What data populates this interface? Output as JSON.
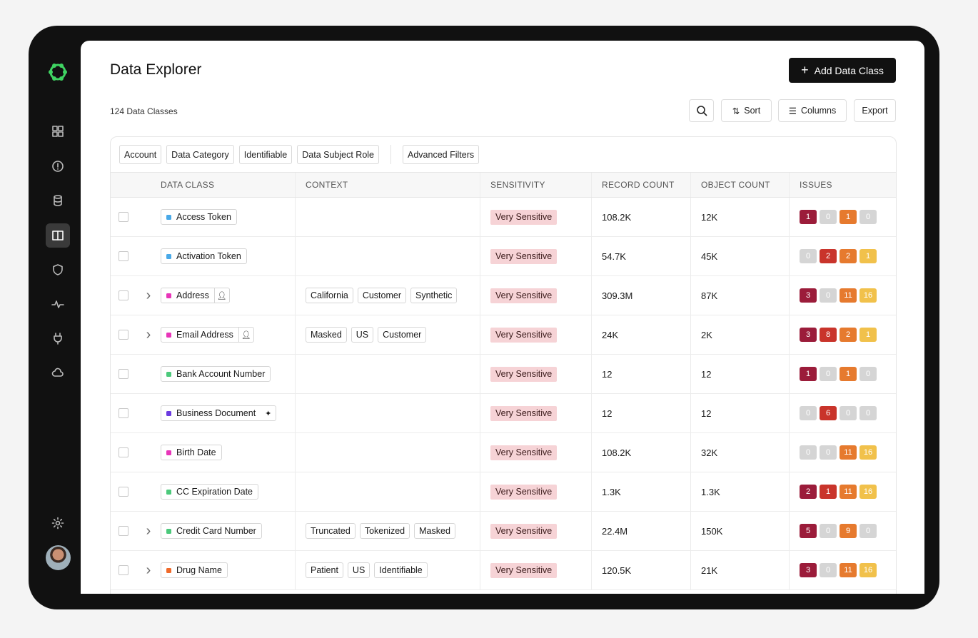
{
  "sidebar": {
    "items": [
      {
        "name": "dashboard-icon"
      },
      {
        "name": "alert-icon"
      },
      {
        "name": "database-icon"
      },
      {
        "name": "data-explorer-icon",
        "active": true
      },
      {
        "name": "shield-icon"
      },
      {
        "name": "activity-icon"
      },
      {
        "name": "plug-icon"
      },
      {
        "name": "cloud-icon"
      }
    ],
    "settings": "gear-icon",
    "avatar": "user-avatar",
    "logo_color": "#3fd462"
  },
  "header": {
    "title": "Data Explorer",
    "add_button": "Add Data Class",
    "count": "124 Data Classes"
  },
  "toolbar": {
    "sort": "Sort",
    "columns": "Columns",
    "export": "Export"
  },
  "filters": [
    "Account",
    "Data Category",
    "Identifiable",
    "Data Subject Role"
  ],
  "advanced_filters": "Advanced Filters",
  "columns": [
    "DATA CLASS",
    "CONTEXT",
    "SENSITIVITY",
    "RECORD COUNT",
    "OBJECT COUNT",
    "ISSUES"
  ],
  "issue_colors": [
    "#9b1c3a",
    "#c9342b",
    "#e67a2e",
    "#f1c14b"
  ],
  "issue_zero_color": "#d5d5d5",
  "rows": [
    {
      "name": "Access Token",
      "dot": "#49a9e8",
      "expandable": false,
      "icon": null,
      "context": [],
      "sensitivity": "Very Sensitive",
      "records": "108.2K",
      "objects": "12K",
      "issues": [
        1,
        0,
        1,
        0
      ]
    },
    {
      "name": "Activation Token",
      "dot": "#49a9e8",
      "expandable": false,
      "icon": null,
      "context": [],
      "sensitivity": "Very Sensitive",
      "records": "54.7K",
      "objects": "45K",
      "issues": [
        0,
        2,
        2,
        1
      ]
    },
    {
      "name": "Address",
      "dot": "#e835b9",
      "expandable": true,
      "icon": "person-icon",
      "context": [
        "California",
        "Customer",
        "Synthetic"
      ],
      "sensitivity": "Very Sensitive",
      "records": "309.3M",
      "objects": "87K",
      "issues": [
        3,
        0,
        11,
        16
      ]
    },
    {
      "name": "Email Address",
      "dot": "#e835b9",
      "expandable": true,
      "icon": "person-icon",
      "context": [
        "Masked",
        "US",
        "Customer"
      ],
      "sensitivity": "Very Sensitive",
      "records": "24K",
      "objects": "2K",
      "issues": [
        3,
        8,
        2,
        1
      ]
    },
    {
      "name": "Bank Account Number",
      "dot": "#4cc97b",
      "expandable": false,
      "icon": null,
      "context": [],
      "sensitivity": "Very Sensitive",
      "records": "12",
      "objects": "12",
      "issues": [
        1,
        0,
        1,
        0
      ]
    },
    {
      "name": "Business Document",
      "dot": "#6b3be0",
      "expandable": false,
      "icon": "sparkle-icon",
      "context": [],
      "sensitivity": "Very Sensitive",
      "records": "12",
      "objects": "12",
      "issues": [
        0,
        6,
        0,
        0
      ]
    },
    {
      "name": "Birth Date",
      "dot": "#e835b9",
      "expandable": false,
      "icon": null,
      "context": [],
      "sensitivity": "Very Sensitive",
      "records": "108.2K",
      "objects": "32K",
      "issues": [
        0,
        0,
        11,
        16
      ]
    },
    {
      "name": "CC Expiration Date",
      "dot": "#4cc97b",
      "expandable": false,
      "icon": null,
      "context": [],
      "sensitivity": "Very Sensitive",
      "records": "1.3K",
      "objects": "1.3K",
      "issues": [
        2,
        1,
        11,
        16
      ]
    },
    {
      "name": "Credit Card Number",
      "dot": "#4cc97b",
      "expandable": true,
      "icon": null,
      "context": [
        "Truncated",
        "Tokenized",
        "Masked"
      ],
      "sensitivity": "Very Sensitive",
      "records": "22.4M",
      "objects": "150K",
      "issues": [
        5,
        0,
        9,
        0
      ]
    },
    {
      "name": "Drug Name",
      "dot": "#f06a2a",
      "expandable": true,
      "icon": null,
      "context": [
        "Patient",
        "US",
        "Identifiable"
      ],
      "sensitivity": "Very Sensitive",
      "records": "120.5K",
      "objects": "21K",
      "issues": [
        3,
        0,
        11,
        16
      ]
    }
  ]
}
